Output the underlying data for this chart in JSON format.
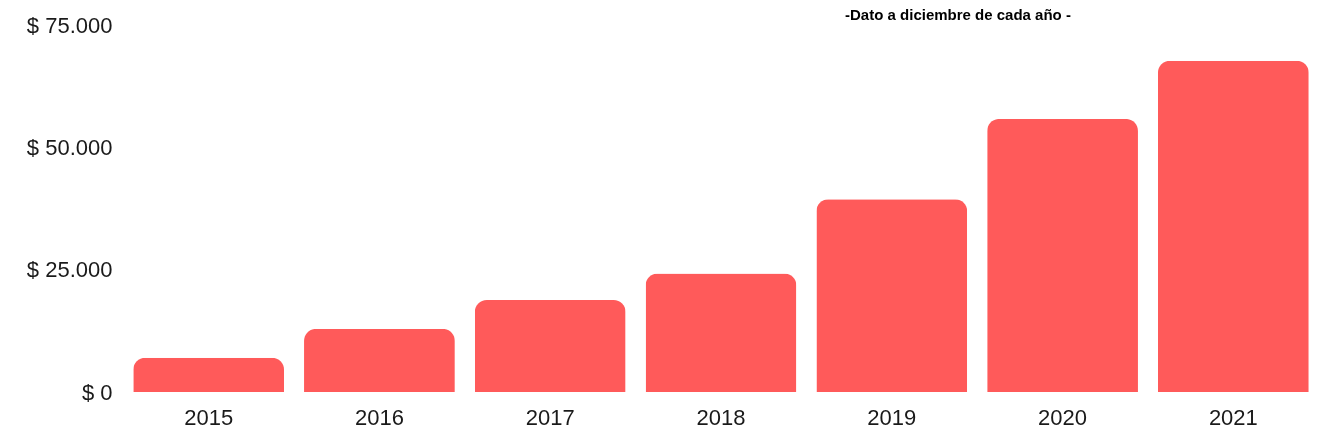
{
  "chart_data": {
    "type": "bar",
    "title": "-Dato a diciembre de cada año -",
    "categories": [
      "2015",
      "2016",
      "2017",
      "2018",
      "2019",
      "2020",
      "2021"
    ],
    "values": [
      7000,
      12900,
      18800,
      24200,
      39400,
      55800,
      67700
    ],
    "color": "#ff5a5a",
    "ylim": [
      0,
      75000
    ],
    "yticks": [
      {
        "value": 0,
        "label": "$ 0"
      },
      {
        "value": 25000,
        "label": "$ 25.000"
      },
      {
        "value": 50000,
        "label": "$ 50.000"
      },
      {
        "value": 75000,
        "label": "$ 75.000"
      }
    ]
  }
}
